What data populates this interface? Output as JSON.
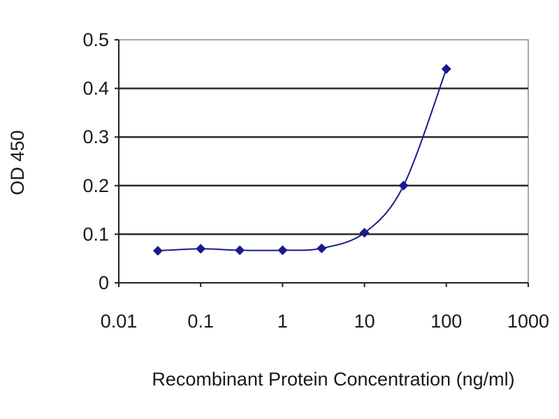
{
  "chart_data": {
    "type": "line",
    "title": "",
    "xlabel": "Recombinant Protein Concentration (ng/ml)",
    "ylabel": "OD 450",
    "x_scale": "log",
    "xlim": [
      0.01,
      1000
    ],
    "ylim": [
      0,
      0.5
    ],
    "x_ticks": [
      {
        "value": 0.01,
        "label": "0.01"
      },
      {
        "value": 0.1,
        "label": "0.1"
      },
      {
        "value": 1,
        "label": "1"
      },
      {
        "value": 10,
        "label": "10"
      },
      {
        "value": 100,
        "label": "100"
      },
      {
        "value": 1000,
        "label": "1000"
      }
    ],
    "y_ticks": [
      {
        "value": 0,
        "label": "0"
      },
      {
        "value": 0.1,
        "label": "0.1"
      },
      {
        "value": 0.2,
        "label": "0.2"
      },
      {
        "value": 0.3,
        "label": "0.3"
      },
      {
        "value": 0.4,
        "label": "0.4"
      },
      {
        "value": 0.5,
        "label": "0.5"
      }
    ],
    "grid": "horizontal",
    "legend": "none",
    "marker": "diamond",
    "series": [
      {
        "x": [
          0.03,
          0.1,
          0.3,
          1,
          3,
          10,
          30,
          100
        ],
        "y": [
          0.066,
          0.07,
          0.067,
          0.067,
          0.071,
          0.103,
          0.2,
          0.44
        ]
      }
    ],
    "colors": {
      "series": "#1a1a8c",
      "gridline": "#2b2b2b",
      "plot_border": "#8c8c8c",
      "background": "#ffffff"
    }
  }
}
